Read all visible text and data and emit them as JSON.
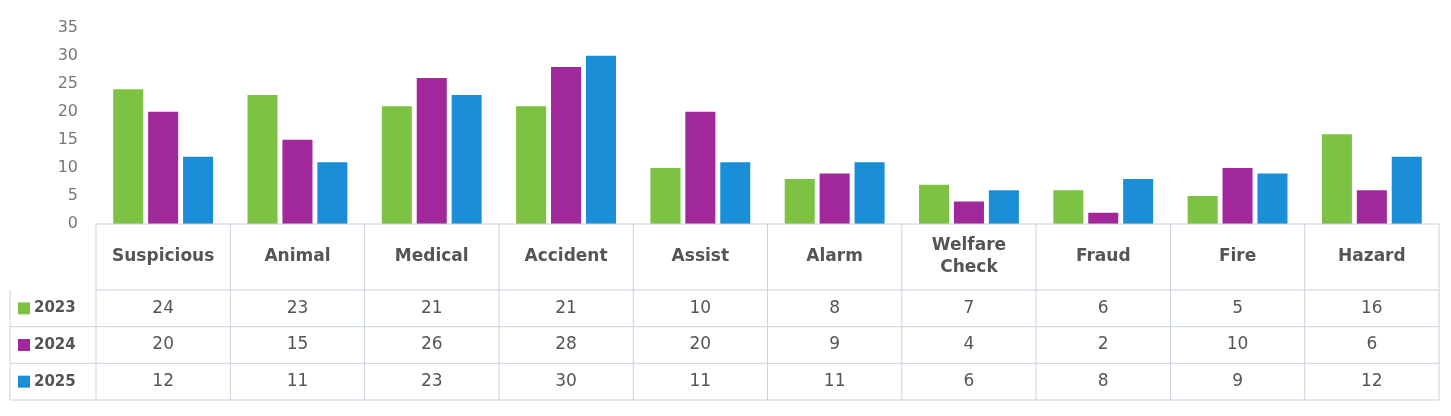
{
  "chart_data": {
    "type": "bar",
    "categories": [
      "Suspicious",
      "Animal",
      "Medical",
      "Accident",
      "Assist",
      "Alarm",
      "Welfare Check",
      "Fraud",
      "Fire",
      "Hazard"
    ],
    "series": [
      {
        "name": "2023",
        "color": "#7dc242",
        "values": [
          24,
          23,
          21,
          21,
          10,
          8,
          7,
          6,
          5,
          16
        ]
      },
      {
        "name": "2024",
        "color": "#a0289a",
        "values": [
          20,
          15,
          26,
          28,
          20,
          9,
          4,
          2,
          10,
          6
        ]
      },
      {
        "name": "2025",
        "color": "#1a8fd8",
        "values": [
          12,
          11,
          23,
          30,
          11,
          11,
          6,
          8,
          9,
          12
        ]
      }
    ],
    "ylim": [
      0,
      35
    ],
    "yticks": [
      0,
      5,
      10,
      15,
      20,
      25,
      30,
      35
    ],
    "grid": false,
    "legend": "bottom",
    "data_labels": true
  }
}
